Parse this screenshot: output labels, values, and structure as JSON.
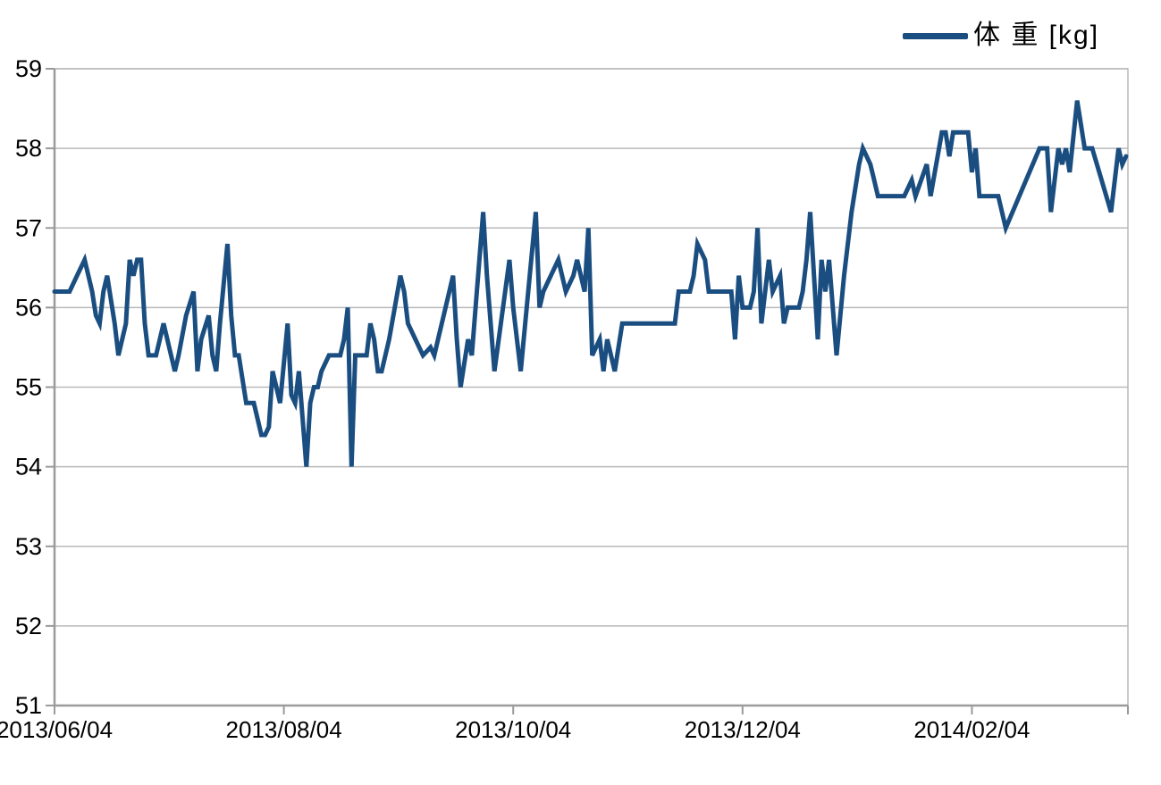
{
  "chart": {
    "legend": {
      "label": "体 重 [kg]"
    },
    "colors": {
      "series": "#1b4e80",
      "grid": "#b9b9b9",
      "axis": "#9a9a9a",
      "plot_border": "#b9b9b9",
      "text": "#000000",
      "background": "#ffffff"
    }
  },
  "chart_data": {
    "type": "line",
    "title": "",
    "xlabel": "",
    "ylabel": "",
    "grid": "horizontal",
    "legend_position": "top-right",
    "y_axis": {
      "ticks": [
        51,
        52,
        53,
        54,
        55,
        56,
        57,
        58,
        59
      ],
      "range": [
        51,
        59
      ]
    },
    "x_axis": {
      "unit": "days since 2013/06/04",
      "tick_labels": [
        "2013/06/04",
        "2013/08/04",
        "2013/10/04",
        "2013/12/04",
        "2014/02/04"
      ],
      "tick_days": [
        0,
        61,
        122,
        183,
        244
      ],
      "range_days": [
        0,
        285.5
      ]
    },
    "series": [
      {
        "name": "体 重 [kg]",
        "color": "#1b4e80",
        "points": [
          [
            0,
            56.2
          ],
          [
            2,
            56.2
          ],
          [
            4,
            56.2
          ],
          [
            5,
            56.3
          ],
          [
            6,
            56.4
          ],
          [
            8,
            56.6
          ],
          [
            9,
            56.4
          ],
          [
            10,
            56.2
          ],
          [
            11,
            55.9
          ],
          [
            12,
            55.8
          ],
          [
            13,
            56.2
          ],
          [
            14,
            56.4
          ],
          [
            15,
            56.1
          ],
          [
            16,
            55.8
          ],
          [
            17,
            55.4
          ],
          [
            18,
            55.6
          ],
          [
            19,
            55.8
          ],
          [
            20,
            56.6
          ],
          [
            21,
            56.4
          ],
          [
            22,
            56.6
          ],
          [
            23,
            56.6
          ],
          [
            24,
            55.8
          ],
          [
            25,
            55.4
          ],
          [
            27,
            55.4
          ],
          [
            29,
            55.8
          ],
          [
            30,
            55.6
          ],
          [
            32,
            55.2
          ],
          [
            33,
            55.4
          ],
          [
            35,
            55.9
          ],
          [
            37,
            56.2
          ],
          [
            38,
            55.2
          ],
          [
            39,
            55.6
          ],
          [
            41,
            55.9
          ],
          [
            42,
            55.4
          ],
          [
            43,
            55.2
          ],
          [
            44,
            55.8
          ],
          [
            46,
            56.8
          ],
          [
            47,
            55.9
          ],
          [
            48,
            55.4
          ],
          [
            49,
            55.4
          ],
          [
            50,
            55.1
          ],
          [
            51,
            54.8
          ],
          [
            53,
            54.8
          ],
          [
            54,
            54.6
          ],
          [
            55,
            54.4
          ],
          [
            56,
            54.4
          ],
          [
            57,
            54.5
          ],
          [
            58,
            55.2
          ],
          [
            59,
            55.0
          ],
          [
            60,
            54.8
          ],
          [
            62,
            55.8
          ],
          [
            63,
            54.9
          ],
          [
            64,
            54.8
          ],
          [
            65,
            55.2
          ],
          [
            66,
            54.6
          ],
          [
            67,
            54.0
          ],
          [
            68,
            54.8
          ],
          [
            69,
            55.0
          ],
          [
            70,
            55.0
          ],
          [
            71,
            55.2
          ],
          [
            73,
            55.4
          ],
          [
            76,
            55.4
          ],
          [
            77,
            55.6
          ],
          [
            78,
            56.0
          ],
          [
            79,
            54.0
          ],
          [
            80,
            55.4
          ],
          [
            83,
            55.4
          ],
          [
            84,
            55.8
          ],
          [
            85,
            55.6
          ],
          [
            86,
            55.2
          ],
          [
            87,
            55.2
          ],
          [
            89,
            55.6
          ],
          [
            92,
            56.4
          ],
          [
            93,
            56.2
          ],
          [
            94,
            55.8
          ],
          [
            96,
            55.6
          ],
          [
            98,
            55.4
          ],
          [
            100,
            55.5
          ],
          [
            101,
            55.4
          ],
          [
            102,
            55.6
          ],
          [
            104,
            56.0
          ],
          [
            106,
            56.4
          ],
          [
            107,
            55.6
          ],
          [
            108,
            55.0
          ],
          [
            110,
            55.6
          ],
          [
            111,
            55.4
          ],
          [
            112,
            56.0
          ],
          [
            114,
            57.2
          ],
          [
            115,
            56.4
          ],
          [
            117,
            55.2
          ],
          [
            119,
            55.9
          ],
          [
            121,
            56.6
          ],
          [
            122,
            56.0
          ],
          [
            124,
            55.2
          ],
          [
            126,
            56.2
          ],
          [
            128,
            57.2
          ],
          [
            129,
            56.0
          ],
          [
            130,
            56.2
          ],
          [
            132,
            56.4
          ],
          [
            134,
            56.6
          ],
          [
            136,
            56.2
          ],
          [
            138,
            56.4
          ],
          [
            139,
            56.6
          ],
          [
            141,
            56.2
          ],
          [
            142,
            57.0
          ],
          [
            143,
            55.4
          ],
          [
            145,
            55.6
          ],
          [
            146,
            55.2
          ],
          [
            147,
            55.6
          ],
          [
            149,
            55.2
          ],
          [
            151,
            55.8
          ],
          [
            165,
            55.8
          ],
          [
            166,
            56.2
          ],
          [
            169,
            56.2
          ],
          [
            170,
            56.4
          ],
          [
            171,
            56.8
          ],
          [
            173,
            56.6
          ],
          [
            174,
            56.2
          ],
          [
            180,
            56.2
          ],
          [
            181,
            55.6
          ],
          [
            182,
            56.4
          ],
          [
            183,
            56.0
          ],
          [
            185,
            56.0
          ],
          [
            186,
            56.2
          ],
          [
            187,
            57.0
          ],
          [
            188,
            55.8
          ],
          [
            190,
            56.6
          ],
          [
            191,
            56.2
          ],
          [
            193,
            56.4
          ],
          [
            194,
            55.8
          ],
          [
            195,
            56.0
          ],
          [
            198,
            56.0
          ],
          [
            199,
            56.2
          ],
          [
            200,
            56.6
          ],
          [
            201,
            57.2
          ],
          [
            203,
            55.6
          ],
          [
            204,
            56.6
          ],
          [
            205,
            56.2
          ],
          [
            206,
            56.6
          ],
          [
            208,
            55.4
          ],
          [
            210,
            56.4
          ],
          [
            212,
            57.2
          ],
          [
            214,
            57.8
          ],
          [
            215,
            58.0
          ],
          [
            217,
            57.8
          ],
          [
            218,
            57.6
          ],
          [
            219,
            57.4
          ],
          [
            226,
            57.4
          ],
          [
            228,
            57.6
          ],
          [
            229,
            57.4
          ],
          [
            232,
            57.8
          ],
          [
            233,
            57.4
          ],
          [
            236,
            58.2
          ],
          [
            237,
            58.2
          ],
          [
            238,
            57.9
          ],
          [
            239,
            58.2
          ],
          [
            243,
            58.2
          ],
          [
            244,
            57.7
          ],
          [
            245,
            58.0
          ],
          [
            246,
            57.4
          ],
          [
            251,
            57.4
          ],
          [
            253,
            57.0
          ],
          [
            262,
            58.0
          ],
          [
            264,
            58.0
          ],
          [
            265,
            57.2
          ],
          [
            267,
            58.0
          ],
          [
            268,
            57.8
          ],
          [
            269,
            58.0
          ],
          [
            270,
            57.7
          ],
          [
            272,
            58.6
          ],
          [
            274,
            58.0
          ],
          [
            276,
            58.0
          ],
          [
            281,
            57.2
          ],
          [
            283,
            58.0
          ],
          [
            284,
            57.8
          ],
          [
            285,
            57.9
          ]
        ]
      }
    ]
  }
}
